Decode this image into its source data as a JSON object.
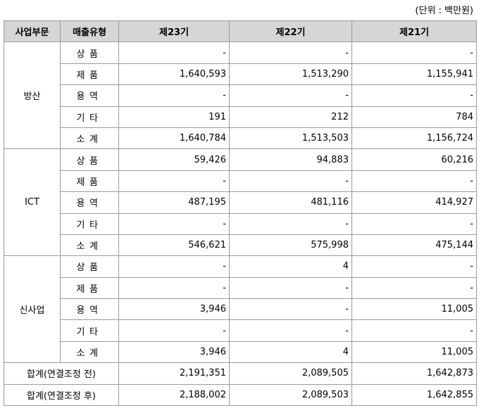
{
  "unit_note": "(단위 : 백만원)",
  "headers": [
    "사업부문",
    "매출유형",
    "제23기",
    "제22기",
    "제21기"
  ],
  "groups": [
    {
      "division": "방산",
      "rows": [
        {
          "type": "상품",
          "v23": "-",
          "v22": "-",
          "v21": "-"
        },
        {
          "type": "제품",
          "v23": "1,640,593",
          "v22": "1,513,290",
          "v21": "1,155,941"
        },
        {
          "type": "용역",
          "v23": "-",
          "v22": "-",
          "v21": "-"
        },
        {
          "type": "기타",
          "v23": "191",
          "v22": "212",
          "v21": "784"
        },
        {
          "type": "소계",
          "v23": "1,640,784",
          "v22": "1,513,503",
          "v21": "1,156,724"
        }
      ]
    },
    {
      "division": "ICT",
      "rows": [
        {
          "type": "상품",
          "v23": "59,426",
          "v22": "94,883",
          "v21": "60,216"
        },
        {
          "type": "제품",
          "v23": "-",
          "v22": "-",
          "v21": "-"
        },
        {
          "type": "용역",
          "v23": "487,195",
          "v22": "481,116",
          "v21": "414,927"
        },
        {
          "type": "기타",
          "v23": "-",
          "v22": "-",
          "v21": "-"
        },
        {
          "type": "소계",
          "v23": "546,621",
          "v22": "575,998",
          "v21": "475,144"
        }
      ]
    },
    {
      "division": "신사업",
      "rows": [
        {
          "type": "상품",
          "v23": "-",
          "v22": "4",
          "v21": "-"
        },
        {
          "type": "제품",
          "v23": "-",
          "v22": "-",
          "v21": "-"
        },
        {
          "type": "용역",
          "v23": "3,946",
          "v22": "-",
          "v21": "11,005"
        },
        {
          "type": "기타",
          "v23": "-",
          "v22": "-",
          "v21": "-"
        },
        {
          "type": "소계",
          "v23": "3,946",
          "v22": "4",
          "v21": "11,005"
        }
      ]
    }
  ],
  "totals": [
    {
      "label": "합계(연결조정 전)",
      "v23": "2,191,351",
      "v22": "2,089,505",
      "v21": "1,642,873"
    },
    {
      "label": "합계(연결조정 후)",
      "v23": "2,188,002",
      "v22": "2,089,503",
      "v21": "1,642,855"
    }
  ]
}
